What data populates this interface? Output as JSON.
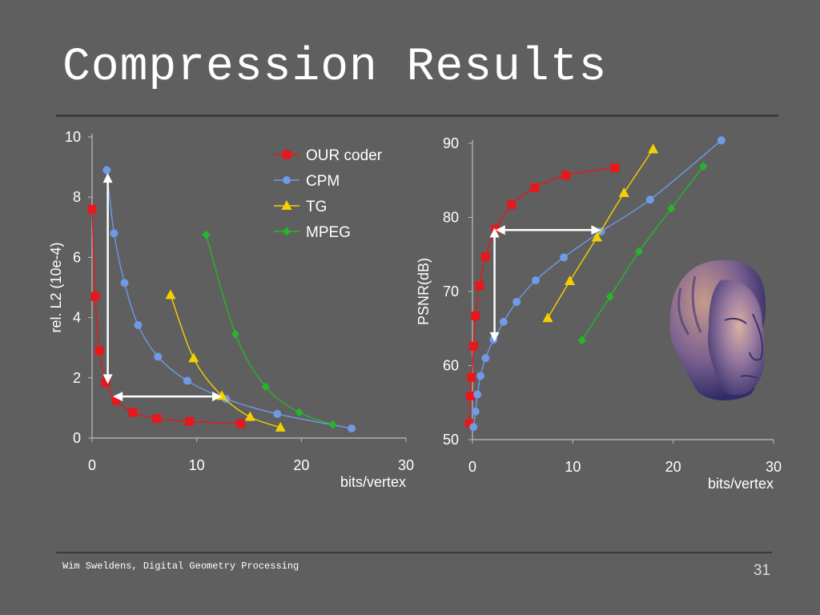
{
  "slide": {
    "title": "Compression Results",
    "footer": "Wim Sweldens, Digital Geometry Processing",
    "page_number": "31"
  },
  "chart_data": [
    {
      "type": "line",
      "xlabel": "bits/vertex",
      "ylabel": "rel. L2 (10e-4)",
      "xlim": [
        0,
        30
      ],
      "ylim": [
        0,
        10
      ],
      "xticks": [
        0,
        10,
        20,
        30
      ],
      "yticks": [
        0,
        2,
        4,
        6,
        8,
        10
      ],
      "legend_position": "top-right",
      "series": [
        {
          "name": "OUR coder",
          "color": "#e8171b",
          "marker": "square",
          "x": [
            0,
            0.3,
            0.7,
            1.3,
            2.3,
            3.9,
            6.2,
            9.3,
            14.2
          ],
          "y": [
            7.6,
            4.7,
            2.9,
            1.85,
            1.25,
            0.85,
            0.65,
            0.55,
            0.48
          ]
        },
        {
          "name": "CPM",
          "color": "#6e9ae6",
          "marker": "circle",
          "x": [
            1.4,
            2.1,
            3.1,
            4.4,
            6.3,
            9.1,
            12.8,
            17.7,
            24.8
          ],
          "y": [
            8.9,
            6.8,
            5.15,
            3.75,
            2.7,
            1.9,
            1.3,
            0.8,
            0.32
          ]
        },
        {
          "name": "TG",
          "color": "#f5d000",
          "marker": "triangle",
          "x": [
            7.5,
            9.7,
            12.4,
            15.1,
            18.0
          ],
          "y": [
            4.75,
            2.65,
            1.4,
            0.7,
            0.35
          ]
        },
        {
          "name": "MPEG",
          "color": "#27b62b",
          "marker": "diamond",
          "x": [
            10.9,
            13.7,
            16.6,
            19.8,
            23.0
          ],
          "y": [
            6.75,
            3.45,
            1.7,
            0.85,
            0.45
          ]
        }
      ]
    },
    {
      "type": "line",
      "xlabel": "bits/vertex",
      "ylabel": "PSNR(dB)",
      "xlim": [
        0,
        30
      ],
      "ylim": [
        50,
        90
      ],
      "xticks": [
        0,
        10,
        20,
        30
      ],
      "yticks": [
        50,
        60,
        70,
        80,
        90
      ],
      "series": [
        {
          "name": "OUR coder",
          "color": "#e8171b",
          "marker": "square",
          "x": [
            -0.3,
            -0.2,
            -0.1,
            0.1,
            0.3,
            0.7,
            1.3,
            2.3,
            3.9,
            6.2,
            9.3,
            14.2
          ],
          "y": [
            52.2,
            55.9,
            58.4,
            62.6,
            66.7,
            70.8,
            74.7,
            78.4,
            81.7,
            84.0,
            85.7,
            86.7
          ]
        },
        {
          "name": "CPM",
          "color": "#6e9ae6",
          "marker": "circle",
          "x": [
            0.1,
            0.3,
            0.5,
            0.8,
            1.3,
            2.1,
            3.1,
            4.4,
            6.3,
            9.1,
            12.8,
            17.7,
            24.8
          ],
          "y": [
            51.7,
            53.8,
            56.1,
            58.6,
            61.0,
            63.5,
            65.9,
            68.6,
            71.5,
            74.6,
            78.1,
            82.4,
            90.4
          ]
        },
        {
          "name": "TG",
          "color": "#f5d000",
          "marker": "triangle",
          "x": [
            7.5,
            9.7,
            12.4,
            15.1,
            18.0
          ],
          "y": [
            66.4,
            71.4,
            77.3,
            83.3,
            89.2
          ]
        },
        {
          "name": "MPEG",
          "color": "#27b62b",
          "marker": "diamond",
          "x": [
            10.9,
            13.7,
            16.6,
            19.8,
            23.0
          ],
          "y": [
            63.4,
            69.3,
            75.4,
            81.2,
            86.9
          ]
        }
      ]
    }
  ]
}
